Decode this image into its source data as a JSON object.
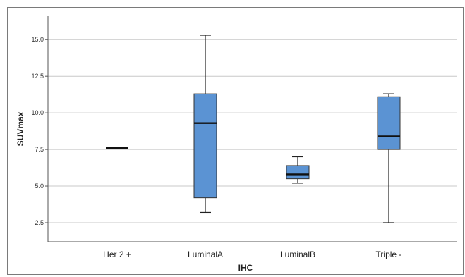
{
  "chart_data": {
    "type": "boxplot",
    "xlabel": "IHC",
    "ylabel": "SUVmax",
    "ylim": [
      1.2,
      16.6
    ],
    "yticks": [
      2.5,
      5.0,
      7.5,
      10.0,
      12.5,
      15.0
    ],
    "ytick_labels": [
      "2.5",
      "5.0",
      "7.5",
      "10.0",
      "12.5",
      "15.0"
    ],
    "grid": true,
    "box_color": "#5b93d3",
    "categories": [
      "Her 2 +",
      "LuminalA",
      "LuminalB",
      "Triple -"
    ],
    "boxes": [
      {
        "category": "Her 2 +",
        "min": 7.6,
        "q1": 7.6,
        "median": 7.6,
        "q3": 7.6,
        "max": 7.6
      },
      {
        "category": "LuminalA",
        "min": 3.2,
        "q1": 4.2,
        "median": 9.3,
        "q3": 11.3,
        "max": 15.3
      },
      {
        "category": "LuminalB",
        "min": 5.2,
        "q1": 5.5,
        "median": 5.8,
        "q3": 6.4,
        "max": 7.0
      },
      {
        "category": "Triple -",
        "min": 2.5,
        "q1": 7.5,
        "median": 8.4,
        "q3": 11.1,
        "max": 11.3
      }
    ]
  }
}
